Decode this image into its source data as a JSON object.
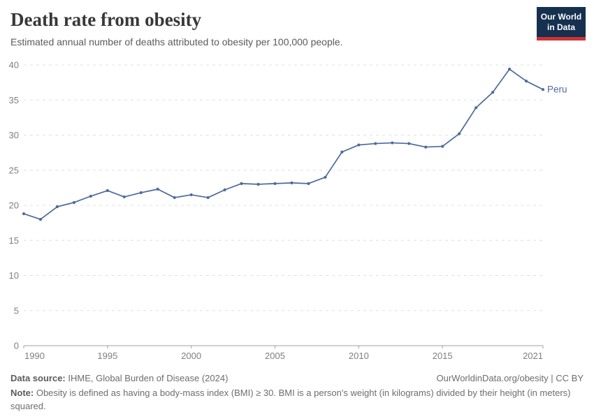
{
  "header": {
    "title": "Death rate from obesity",
    "subtitle": "Estimated annual number of deaths attributed to obesity per 100,000 people.",
    "logo_line1": "Our World",
    "logo_line2": "in Data"
  },
  "chart_data": {
    "type": "line",
    "title": "Death rate from obesity",
    "x": [
      1990,
      1991,
      1992,
      1993,
      1994,
      1995,
      1996,
      1997,
      1998,
      1999,
      2000,
      2001,
      2002,
      2003,
      2004,
      2005,
      2006,
      2007,
      2008,
      2009,
      2010,
      2011,
      2012,
      2013,
      2014,
      2015,
      2016,
      2017,
      2018,
      2019,
      2020,
      2021
    ],
    "series": [
      {
        "name": "Peru",
        "color": "#4C6A9C",
        "values": [
          18.8,
          18.0,
          19.8,
          20.4,
          21.3,
          22.1,
          21.2,
          21.8,
          22.3,
          21.1,
          21.5,
          21.1,
          22.2,
          23.1,
          23.0,
          23.1,
          23.2,
          23.1,
          24.0,
          27.6,
          28.6,
          28.8,
          28.9,
          28.8,
          28.3,
          28.4,
          30.2,
          33.9,
          36.1,
          39.4,
          37.7,
          36.5
        ]
      }
    ],
    "end_label": "Peru",
    "xlabel": "",
    "ylabel": "",
    "xlim": [
      1990,
      2021
    ],
    "ylim": [
      0,
      40
    ],
    "x_ticks": [
      1990,
      1995,
      2000,
      2005,
      2010,
      2015,
      2021
    ],
    "y_ticks": [
      0,
      5,
      10,
      15,
      20,
      25,
      30,
      35,
      40
    ],
    "grid": "horizontal-dashed",
    "legend_position": "end-of-line"
  },
  "footer": {
    "source_label": "Data source:",
    "source_text": " IHME, Global Burden of Disease (2024)",
    "rights": "OurWorldinData.org/obesity | CC BY",
    "note_label": "Note:",
    "note_text": " Obesity is defined as having a body-mass index (BMI) ≥ 30. BMI is a person's weight (in kilograms) divided by their height (in meters) squared."
  },
  "colors": {
    "series": "#4C6A9C",
    "grid": "#e0e0e0",
    "axis": "#a1a1a1",
    "tick_text": "#7f7f7f",
    "title_text": "#383838",
    "subtitle_text": "#5b5b5b",
    "footer_text": "#6d6d6d",
    "logo_navy": "#16304f",
    "logo_red": "#cf3235"
  }
}
